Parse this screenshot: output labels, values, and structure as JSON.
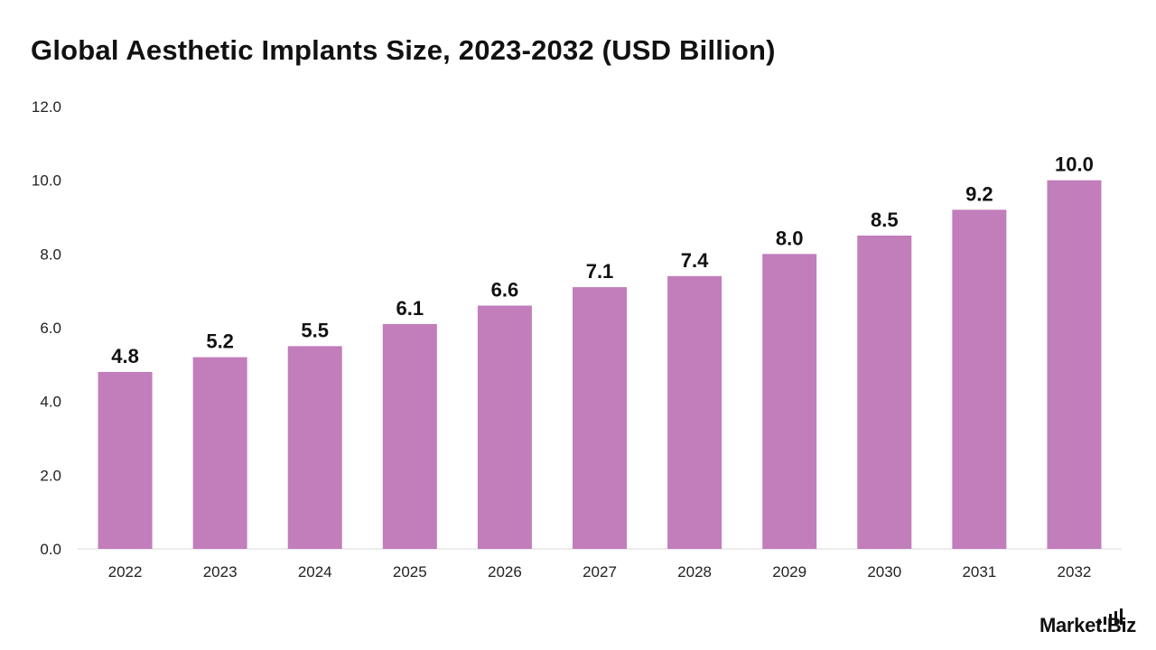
{
  "colors": {
    "bar": "#c27dbb",
    "axis": "#d9d9d9"
  },
  "brand": {
    "text": "Market.Biz"
  },
  "chart_data": {
    "type": "bar",
    "title": "Global Aesthetic Implants Size, 2023-2032 (USD Billion)",
    "xlabel": "",
    "ylabel": "",
    "categories": [
      "2022",
      "2023",
      "2024",
      "2025",
      "2026",
      "2027",
      "2028",
      "2029",
      "2030",
      "2031",
      "2032"
    ],
    "values": [
      4.8,
      5.2,
      5.5,
      6.1,
      6.6,
      7.1,
      7.4,
      8.0,
      8.5,
      9.2,
      10.0
    ],
    "value_labels": [
      "4.8",
      "5.2",
      "5.5",
      "6.1",
      "6.6",
      "7.1",
      "7.4",
      "8.0",
      "8.5",
      "9.2",
      "10.0"
    ],
    "ylim": [
      0,
      12
    ],
    "yticks": [
      "0.0",
      "2.0",
      "4.0",
      "6.0",
      "8.0",
      "10.0",
      "12.0"
    ],
    "grid": false,
    "legend": "none"
  }
}
